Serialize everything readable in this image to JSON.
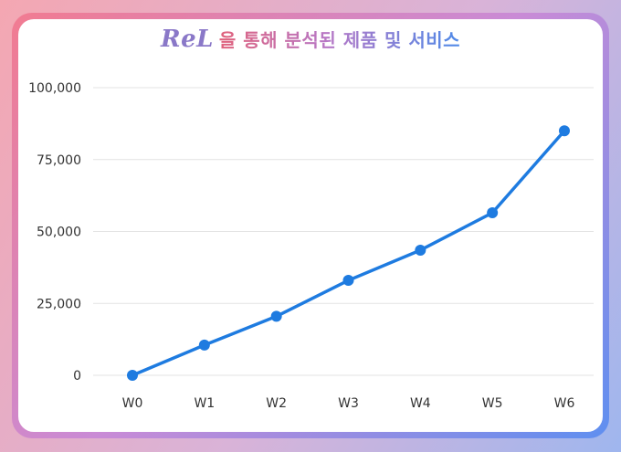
{
  "header": {
    "logo_text": "ReL",
    "title": "을 통해 분석된 제품 및 서비스"
  },
  "chart_data": {
    "type": "line",
    "title": "ReL 을 통해 분석된 제품 및 서비스",
    "xlabel": "",
    "ylabel": "",
    "categories": [
      "W0",
      "W1",
      "W2",
      "W3",
      "W4",
      "W5",
      "W6"
    ],
    "series": [
      {
        "values": [
          0,
          10500,
          20500,
          33000,
          43500,
          56500,
          85000
        ]
      }
    ],
    "ylim": [
      0,
      100000
    ],
    "yticks": [
      0,
      25000,
      50000,
      75000,
      100000
    ],
    "ytick_labels": [
      "0",
      "25,000",
      "50,000",
      "75,000",
      "100,000"
    ],
    "grid": true,
    "line_color": "#1e7be0"
  }
}
